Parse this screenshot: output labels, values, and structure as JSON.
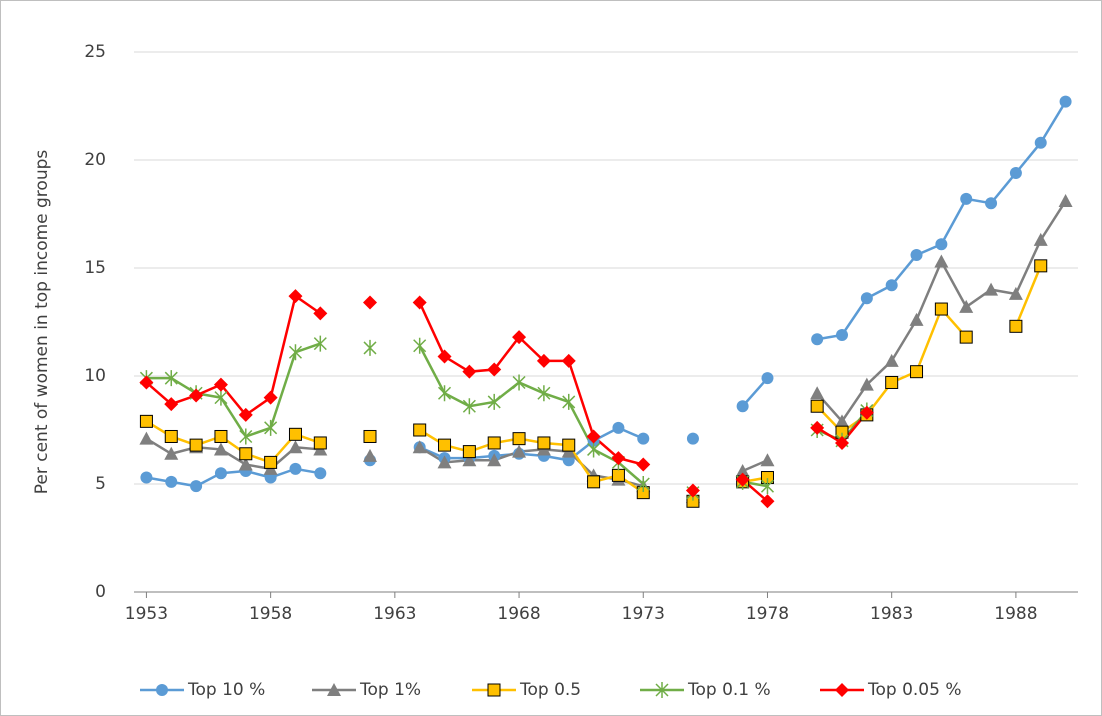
{
  "chart_data": {
    "type": "line",
    "y_label": "Per cent of women in top income groups",
    "x": [
      1953,
      1954,
      1955,
      1956,
      1957,
      1958,
      1959,
      1960,
      1961,
      1962,
      1963,
      1964,
      1965,
      1966,
      1967,
      1968,
      1969,
      1970,
      1971,
      1972,
      1973,
      1974,
      1975,
      1976,
      1977,
      1978,
      1979,
      1980,
      1981,
      1982,
      1983,
      1984,
      1985,
      1986,
      1987,
      1988,
      1989,
      1990
    ],
    "xlim": [
      1952.5,
      1990.5
    ],
    "xticks": [
      1953,
      1958,
      1963,
      1968,
      1973,
      1978,
      1983,
      1988
    ],
    "ylim": [
      0,
      25
    ],
    "yticks": [
      0,
      5,
      10,
      15,
      20,
      25
    ],
    "grid": true,
    "legend": "bottom",
    "series": [
      {
        "name": "Top 10 %",
        "color": "#5b9bd5",
        "marker": "circle",
        "values": [
          5.3,
          5.1,
          4.9,
          5.5,
          5.6,
          5.3,
          5.7,
          5.5,
          null,
          6.1,
          null,
          6.7,
          6.2,
          6.2,
          6.3,
          6.4,
          6.3,
          6.1,
          7.0,
          7.6,
          7.1,
          null,
          7.1,
          null,
          8.6,
          9.9,
          null,
          11.7,
          11.9,
          13.6,
          14.2,
          15.6,
          16.1,
          18.2,
          18.0,
          19.4,
          20.8,
          22.7
        ]
      },
      {
        "name": "Top 1%",
        "color": "#7f7f7f",
        "marker": "triangle",
        "values": [
          7.1,
          6.4,
          6.7,
          6.6,
          5.9,
          5.7,
          6.7,
          6.6,
          null,
          6.3,
          null,
          6.7,
          6.0,
          6.1,
          6.1,
          6.5,
          6.6,
          6.5,
          5.4,
          5.2,
          4.9,
          null,
          4.4,
          null,
          5.6,
          6.1,
          null,
          9.2,
          7.9,
          9.6,
          10.7,
          12.6,
          15.3,
          13.2,
          14.0,
          13.8,
          16.3,
          18.1
        ]
      },
      {
        "name": "Top 0.5",
        "color": "#ffc000",
        "marker": "square",
        "values": [
          7.9,
          7.2,
          6.8,
          7.2,
          6.4,
          6.0,
          7.3,
          6.9,
          null,
          7.2,
          null,
          7.5,
          6.8,
          6.5,
          6.9,
          7.1,
          6.9,
          6.8,
          5.1,
          5.4,
          4.6,
          null,
          4.2,
          null,
          5.1,
          5.3,
          null,
          8.6,
          7.4,
          8.2,
          9.7,
          10.2,
          13.1,
          11.8,
          null,
          12.3,
          15.1,
          null
        ]
      },
      {
        "name": "Top 0.1 %",
        "color": "#70ad47",
        "marker": "star",
        "values": [
          9.9,
          9.9,
          9.2,
          9.0,
          7.2,
          7.6,
          11.1,
          11.5,
          null,
          11.3,
          null,
          11.4,
          9.2,
          8.6,
          8.8,
          9.7,
          9.2,
          8.8,
          6.6,
          6.0,
          5.0,
          null,
          4.6,
          null,
          5.1,
          4.9,
          null,
          7.5,
          7.0,
          8.4,
          null,
          null,
          null,
          null,
          null,
          null,
          null,
          null
        ]
      },
      {
        "name": "Top 0.05 %",
        "color": "#ff0000",
        "marker": "diamond",
        "values": [
          9.7,
          8.7,
          9.1,
          9.6,
          8.2,
          9.0,
          13.7,
          12.9,
          null,
          13.4,
          null,
          13.4,
          10.9,
          10.2,
          10.3,
          11.8,
          10.7,
          10.7,
          7.2,
          6.2,
          5.9,
          null,
          4.7,
          null,
          5.2,
          4.2,
          null,
          7.6,
          6.9,
          8.3,
          null,
          null,
          null,
          null,
          null,
          null,
          null,
          null
        ]
      }
    ]
  }
}
